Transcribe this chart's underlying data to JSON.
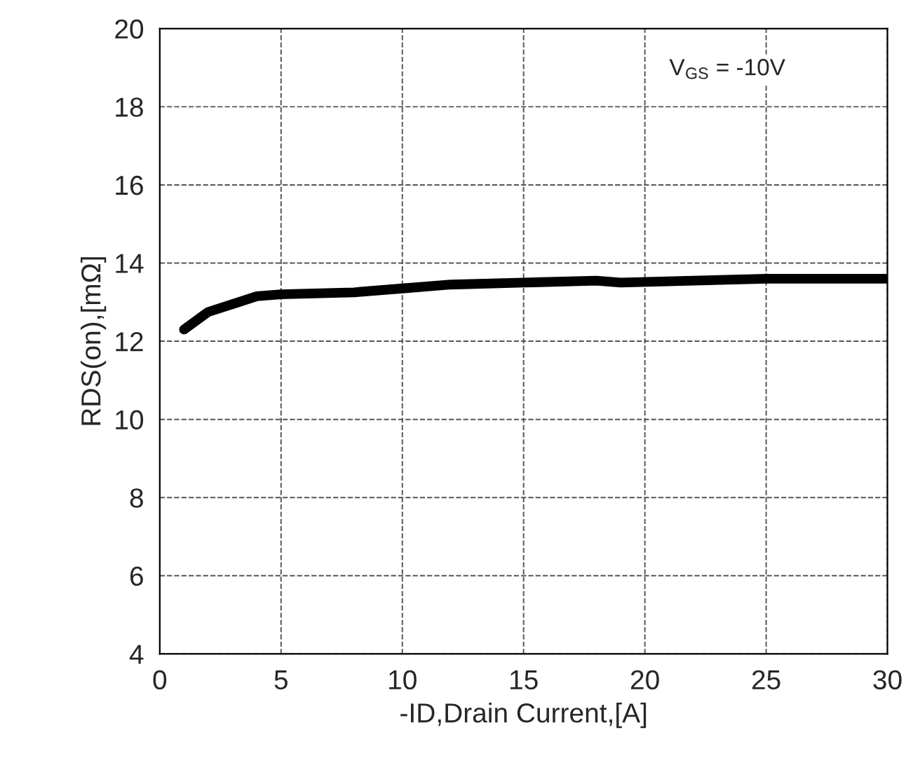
{
  "chart_data": {
    "type": "line",
    "xlabel": "-ID,Drain Current,[A]",
    "ylabel": "RDS(on),[mΩ]",
    "annotations": [
      "V$_{GS}$ = -10V"
    ],
    "series": [
      {
        "color": "#000000",
        "x": [
          1,
          2,
          3,
          4,
          5,
          8,
          10,
          12,
          15,
          18,
          19,
          22,
          25,
          26,
          27,
          30
        ],
        "values": [
          12.3,
          12.75,
          12.95,
          13.15,
          13.2,
          13.25,
          13.35,
          13.45,
          13.5,
          13.55,
          13.5,
          13.55,
          13.6,
          13.6,
          13.6,
          13.6
        ]
      }
    ],
    "xlim": [
      0,
      30
    ],
    "xticks": [
      0,
      5,
      10,
      15,
      20,
      25,
      30
    ],
    "ylim": [
      4,
      20
    ],
    "yticks": [
      4,
      6,
      8,
      10,
      12,
      14,
      16,
      18,
      20
    ],
    "grid": true
  }
}
